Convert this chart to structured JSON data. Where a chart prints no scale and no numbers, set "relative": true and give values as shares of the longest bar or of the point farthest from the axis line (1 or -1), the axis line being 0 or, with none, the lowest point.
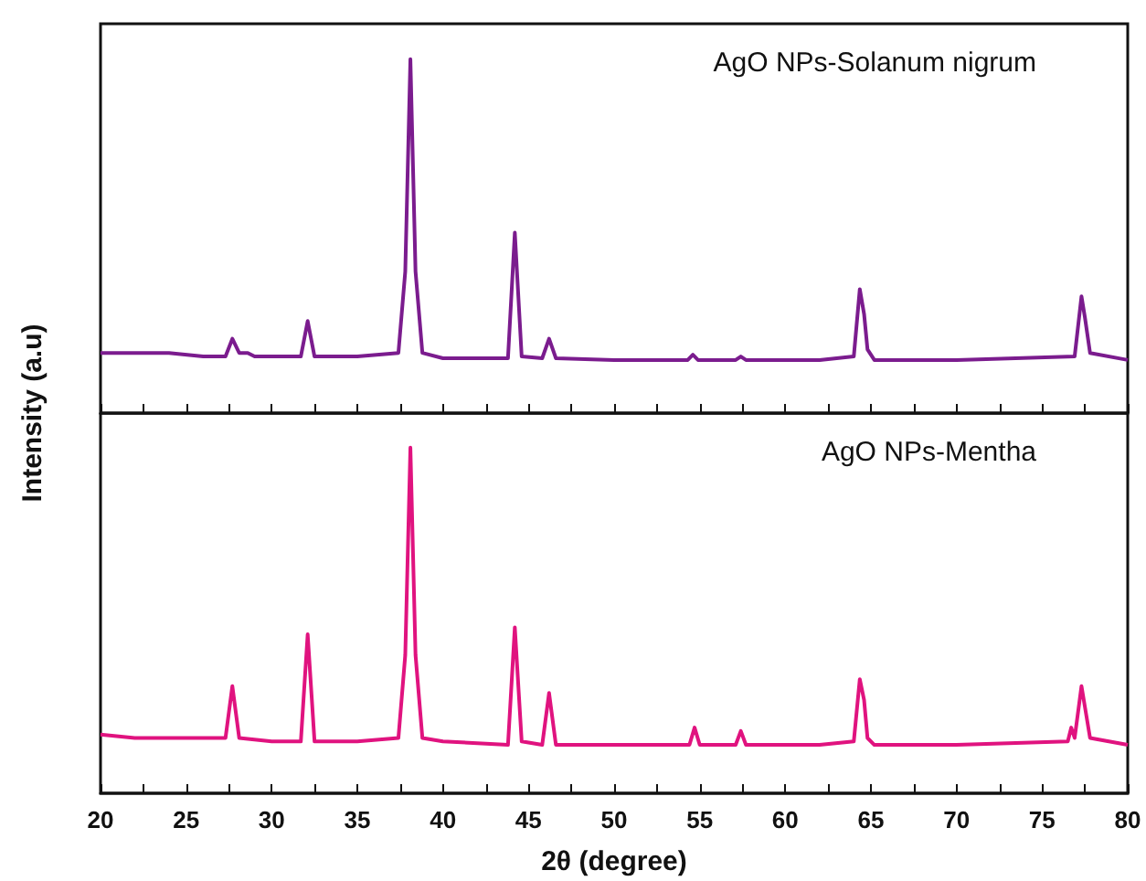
{
  "chart_data": [
    {
      "type": "line",
      "relative": true,
      "ylabel": "Intensity (a.u)",
      "annotations": [
        "AgO NPs-Solanum nigrum"
      ],
      "xlim": [
        20,
        80
      ],
      "tick_labels": false,
      "xticks": [
        20,
        {
          "value": 22.5,
          "label": null
        },
        25,
        {
          "value": 27.5,
          "label": null
        },
        30,
        {
          "value": 32.5,
          "label": null
        },
        35,
        {
          "value": 37.5,
          "label": null
        },
        40,
        {
          "value": 42.5,
          "label": null
        },
        45,
        {
          "value": 47.5,
          "label": null
        },
        50,
        {
          "value": 52.5,
          "label": null
        },
        55,
        {
          "value": 57.5,
          "label": null
        },
        60,
        {
          "value": 62.5,
          "label": null
        },
        65,
        {
          "value": 67.5,
          "label": null
        },
        70,
        {
          "value": 72.5,
          "label": null
        },
        75,
        {
          "value": 77.5,
          "label": null
        },
        80
      ],
      "series": [
        {
          "color": "#7b1c8e",
          "x": [
            20,
            22,
            24,
            26,
            27.3,
            27.7,
            28.1,
            28.6,
            29,
            31.7,
            32.1,
            32.5,
            35,
            37.4,
            37.8,
            38.1,
            38.4,
            38.8,
            40,
            43.8,
            44.2,
            44.6,
            45.8,
            46.2,
            46.6,
            50,
            54.3,
            54.6,
            54.9,
            57.1,
            57.4,
            57.7,
            62,
            64.0,
            64.35,
            64.6,
            64.8,
            65.2,
            70,
            76.9,
            77.3,
            77.5,
            77.8,
            80
          ],
          "values": [
            0.17,
            0.17,
            0.17,
            0.16,
            0.16,
            0.21,
            0.17,
            0.17,
            0.16,
            0.16,
            0.26,
            0.16,
            0.16,
            0.17,
            0.4,
            1.0,
            0.4,
            0.17,
            0.155,
            0.155,
            0.51,
            0.16,
            0.155,
            0.21,
            0.155,
            0.15,
            0.15,
            0.165,
            0.15,
            0.15,
            0.16,
            0.15,
            0.15,
            0.16,
            0.35,
            0.28,
            0.18,
            0.15,
            0.15,
            0.16,
            0.33,
            0.27,
            0.17,
            0.15
          ]
        }
      ]
    },
    {
      "type": "line",
      "relative": true,
      "xlabel": "2θ (degree)",
      "annotations": [
        "AgO NPs-Mentha"
      ],
      "xlim": [
        20,
        80
      ],
      "tick_labels": "x",
      "xticks": [
        20,
        {
          "value": 22.5,
          "label": null
        },
        25,
        {
          "value": 27.5,
          "label": null
        },
        30,
        {
          "value": 32.5,
          "label": null
        },
        35,
        {
          "value": 37.5,
          "label": null
        },
        40,
        {
          "value": 42.5,
          "label": null
        },
        45,
        {
          "value": 47.5,
          "label": null
        },
        50,
        {
          "value": 52.5,
          "label": null
        },
        55,
        {
          "value": 57.5,
          "label": null
        },
        60,
        {
          "value": 62.5,
          "label": null
        },
        65,
        {
          "value": 67.5,
          "label": null
        },
        70,
        {
          "value": 72.5,
          "label": null
        },
        75,
        {
          "value": 77.5,
          "label": null
        },
        80
      ],
      "series": [
        {
          "color": "#e0137f",
          "x": [
            20,
            22,
            24,
            26,
            27.3,
            27.7,
            28.1,
            30,
            31.7,
            32.1,
            32.5,
            35,
            37.4,
            37.8,
            38.1,
            38.4,
            38.8,
            40,
            43.8,
            44.2,
            44.6,
            45.8,
            46.2,
            46.6,
            50,
            54.4,
            54.7,
            55,
            57.1,
            57.4,
            57.7,
            62,
            64.0,
            64.35,
            64.6,
            64.8,
            65.2,
            70,
            76.5,
            76.7,
            76.9,
            77.3,
            77.5,
            77.8,
            80
          ],
          "values": [
            0.17,
            0.16,
            0.16,
            0.16,
            0.16,
            0.31,
            0.16,
            0.15,
            0.15,
            0.46,
            0.15,
            0.15,
            0.16,
            0.4,
            1.0,
            0.4,
            0.16,
            0.15,
            0.14,
            0.48,
            0.15,
            0.14,
            0.29,
            0.14,
            0.14,
            0.14,
            0.19,
            0.14,
            0.14,
            0.18,
            0.14,
            0.14,
            0.15,
            0.33,
            0.27,
            0.16,
            0.14,
            0.14,
            0.15,
            0.19,
            0.16,
            0.31,
            0.25,
            0.16,
            0.14
          ]
        }
      ]
    }
  ]
}
